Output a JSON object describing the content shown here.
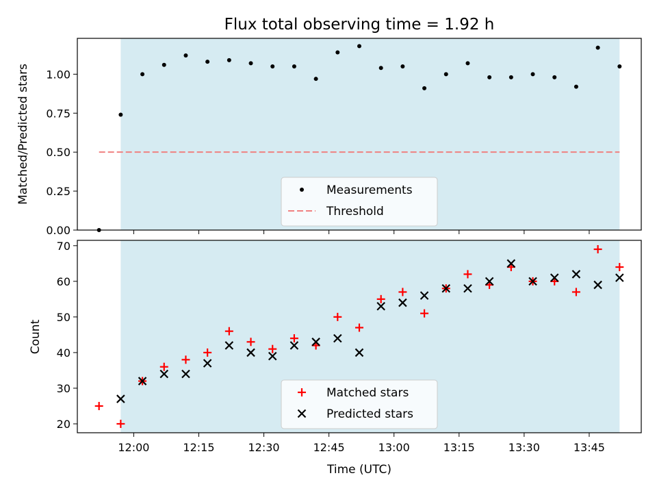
{
  "chart_data": {
    "title": "Flux total observing time = 1.92 h",
    "xlabel": "Time (UTC)",
    "x_ticks": [
      "12:00",
      "12:15",
      "12:30",
      "12:45",
      "13:00",
      "13:15",
      "13:30",
      "13:45"
    ],
    "shaded_region": {
      "start": "11:57",
      "end": "13:52",
      "color": "#add8e6"
    },
    "top": {
      "type": "scatter",
      "ylabel": "Matched/Predicted stars",
      "ylim": [
        0,
        1.23
      ],
      "y_ticks": [
        "0.00",
        "0.25",
        "0.50",
        "0.75",
        "1.00"
      ],
      "threshold": {
        "name": "Threshold",
        "value": 0.5,
        "from": "11:52",
        "to": "13:52",
        "color": "#f08080"
      },
      "series": [
        {
          "name": "Measurements",
          "color": "#000000",
          "points": [
            [
              "11:52",
              0.0
            ],
            [
              "11:57",
              0.74
            ],
            [
              "12:02",
              1.0
            ],
            [
              "12:07",
              1.06
            ],
            [
              "12:12",
              1.12
            ],
            [
              "12:17",
              1.08
            ],
            [
              "12:22",
              1.09
            ],
            [
              "12:27",
              1.07
            ],
            [
              "12:32",
              1.05
            ],
            [
              "12:37",
              1.05
            ],
            [
              "12:42",
              0.97
            ],
            [
              "12:47",
              1.14
            ],
            [
              "12:52",
              1.18
            ],
            [
              "12:57",
              1.04
            ],
            [
              "13:02",
              1.05
            ],
            [
              "13:07",
              0.91
            ],
            [
              "13:12",
              1.0
            ],
            [
              "13:17",
              1.07
            ],
            [
              "13:22",
              0.98
            ],
            [
              "13:27",
              0.98
            ],
            [
              "13:32",
              1.0
            ],
            [
              "13:37",
              0.98
            ],
            [
              "13:42",
              0.92
            ],
            [
              "13:47",
              1.17
            ],
            [
              "13:52",
              1.05
            ]
          ]
        }
      ],
      "legend": [
        "Measurements",
        "Threshold"
      ],
      "legend_position": "bottom-center"
    },
    "bottom": {
      "type": "scatter",
      "ylabel": "Count",
      "ylim": [
        17.5,
        71.5
      ],
      "y_ticks": [
        "20",
        "30",
        "40",
        "50",
        "60",
        "70"
      ],
      "series": [
        {
          "name": "Matched stars",
          "marker": "plus",
          "color": "#ff0000",
          "points": [
            [
              "11:52",
              25
            ],
            [
              "11:57",
              20
            ],
            [
              "12:02",
              32
            ],
            [
              "12:07",
              36
            ],
            [
              "12:12",
              38
            ],
            [
              "12:17",
              40
            ],
            [
              "12:22",
              46
            ],
            [
              "12:27",
              43
            ],
            [
              "12:32",
              41
            ],
            [
              "12:37",
              44
            ],
            [
              "12:42",
              42
            ],
            [
              "12:47",
              50
            ],
            [
              "12:52",
              47
            ],
            [
              "12:57",
              55
            ],
            [
              "13:02",
              57
            ],
            [
              "13:07",
              51
            ],
            [
              "13:12",
              58
            ],
            [
              "13:17",
              62
            ],
            [
              "13:22",
              59
            ],
            [
              "13:27",
              64
            ],
            [
              "13:32",
              60
            ],
            [
              "13:37",
              60
            ],
            [
              "13:42",
              57
            ],
            [
              "13:47",
              69
            ],
            [
              "13:52",
              64
            ]
          ]
        },
        {
          "name": "Predicted stars",
          "marker": "x",
          "color": "#000000",
          "points": [
            [
              "11:57",
              27
            ],
            [
              "12:02",
              32
            ],
            [
              "12:07",
              34
            ],
            [
              "12:12",
              34
            ],
            [
              "12:17",
              37
            ],
            [
              "12:22",
              42
            ],
            [
              "12:27",
              40
            ],
            [
              "12:32",
              39
            ],
            [
              "12:37",
              42
            ],
            [
              "12:42",
              43
            ],
            [
              "12:47",
              44
            ],
            [
              "12:52",
              40
            ],
            [
              "12:57",
              53
            ],
            [
              "13:02",
              54
            ],
            [
              "13:07",
              56
            ],
            [
              "13:12",
              58
            ],
            [
              "13:17",
              58
            ],
            [
              "13:22",
              60
            ],
            [
              "13:27",
              65
            ],
            [
              "13:32",
              60
            ],
            [
              "13:37",
              61
            ],
            [
              "13:42",
              62
            ],
            [
              "13:47",
              59
            ],
            [
              "13:52",
              61
            ]
          ]
        }
      ],
      "legend": [
        "Matched stars",
        "Predicted stars"
      ],
      "legend_position": "bottom-center"
    }
  }
}
